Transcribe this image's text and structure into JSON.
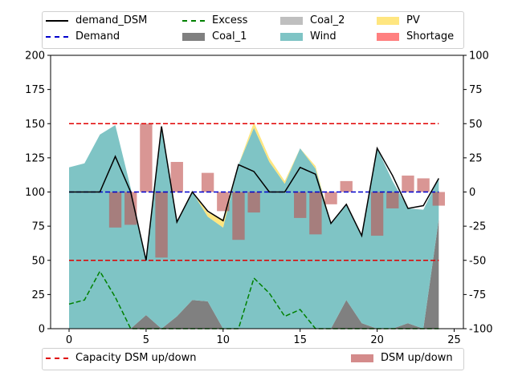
{
  "chart_data": {
    "type": "area",
    "x": [
      0,
      1,
      2,
      3,
      4,
      5,
      6,
      7,
      8,
      9,
      10,
      11,
      12,
      13,
      14,
      15,
      16,
      17,
      18,
      19,
      20,
      21,
      22,
      23,
      24
    ],
    "xlim": [
      -1.2,
      25.6
    ],
    "xticks": [
      0,
      5,
      10,
      15,
      20,
      25
    ],
    "ylim": [
      0,
      200
    ],
    "yticks": [
      0,
      25,
      50,
      75,
      100,
      125,
      150,
      175,
      200
    ],
    "y2lim": [
      -100,
      100
    ],
    "y2ticks": [
      -100,
      -75,
      -50,
      -25,
      0,
      25,
      50,
      75,
      100
    ],
    "grid": false,
    "stack": {
      "coal_1": [
        0,
        0,
        0,
        0,
        0,
        10,
        0,
        9,
        21,
        20,
        0,
        0,
        0,
        0,
        0,
        0,
        0,
        0,
        21,
        4,
        0,
        0,
        4,
        0,
        80
      ],
      "coal_2": [
        0,
        0,
        0,
        0,
        0,
        0,
        0,
        0,
        0,
        0,
        0,
        0,
        0,
        0,
        0,
        0,
        0,
        0,
        0,
        0,
        0,
        0,
        0,
        0,
        0
      ],
      "wind": [
        118,
        121,
        142,
        149,
        103,
        40,
        148,
        69,
        79,
        62,
        74,
        120,
        147,
        122,
        106,
        132,
        117,
        77,
        70,
        64,
        132,
        108,
        84,
        87,
        30
      ],
      "pv": [
        0,
        0,
        0,
        0,
        0,
        0,
        0,
        0,
        0,
        3,
        6,
        0,
        4,
        3,
        2,
        0,
        2,
        0,
        0,
        0,
        0,
        0,
        0,
        0,
        0
      ],
      "shortage": [
        0,
        0,
        0,
        0,
        0,
        0,
        0,
        0,
        0,
        0,
        0,
        0,
        0,
        0,
        0,
        0,
        0,
        0,
        0,
        0,
        0,
        0,
        0,
        0,
        0
      ]
    },
    "lines": {
      "demand_dsm": [
        100,
        100,
        100,
        126,
        100,
        50,
        148,
        78,
        100,
        86,
        79,
        120,
        115,
        100,
        100,
        118,
        113,
        77,
        91,
        68,
        132,
        112,
        88,
        90,
        110
      ],
      "demand": [
        100,
        100,
        100,
        100,
        100,
        100,
        100,
        100,
        100,
        100,
        100,
        100,
        100,
        100,
        100,
        100,
        100,
        100,
        100,
        100,
        100,
        100,
        100,
        100,
        100
      ],
      "excess": [
        18,
        21,
        42,
        23,
        0,
        0,
        0,
        0,
        0,
        0,
        0,
        0,
        37,
        26,
        9,
        14,
        0,
        0,
        0,
        0,
        0,
        0,
        0,
        0,
        0
      ],
      "capacity_dsm_up": [
        150,
        150,
        150,
        150,
        150,
        150,
        150,
        150,
        150,
        150,
        150,
        150,
        150,
        150,
        150,
        150,
        150,
        150,
        150,
        150,
        150,
        150,
        150,
        150,
        150
      ],
      "capacity_dsm_down": [
        50,
        50,
        50,
        50,
        50,
        50,
        50,
        50,
        50,
        50,
        50,
        50,
        50,
        50,
        50,
        50,
        50,
        50,
        50,
        50,
        50,
        50,
        50,
        50,
        50
      ]
    },
    "dsm_up_down": [
      0,
      0,
      0,
      -26,
      -24,
      50,
      -48,
      22,
      0,
      14,
      -14,
      -35,
      -15,
      0,
      0,
      -19,
      -31,
      -9,
      8,
      0,
      -32,
      -12,
      12,
      10,
      -10
    ],
    "legend_top": {
      "placement": "top",
      "items": [
        {
          "label": "demand_DSM",
          "kind": "line",
          "color": "#000000",
          "dash": "solid"
        },
        {
          "label": "Demand",
          "kind": "line",
          "color": "#0000cc",
          "dash": "dashed"
        },
        {
          "label": "Excess",
          "kind": "line",
          "color": "#008000",
          "dash": "dashed"
        },
        {
          "label": "Coal_1",
          "kind": "patch",
          "color": "#808080"
        },
        {
          "label": "Coal_2",
          "kind": "patch",
          "color": "#bfbfbf"
        },
        {
          "label": "Wind",
          "kind": "patch",
          "color": "#7fc4c5"
        },
        {
          "label": "PV",
          "kind": "patch",
          "color": "#ffe680"
        },
        {
          "label": "Shortage",
          "kind": "patch",
          "color": "#ff8080"
        }
      ]
    },
    "legend_bottom": {
      "placement": "bottom",
      "items": [
        {
          "label": "Capacity DSM up/down",
          "kind": "line",
          "color": "#e00000",
          "dash": "dashed"
        },
        {
          "label": "DSM up/down",
          "kind": "patch",
          "color": "#d48b8b"
        }
      ]
    }
  }
}
